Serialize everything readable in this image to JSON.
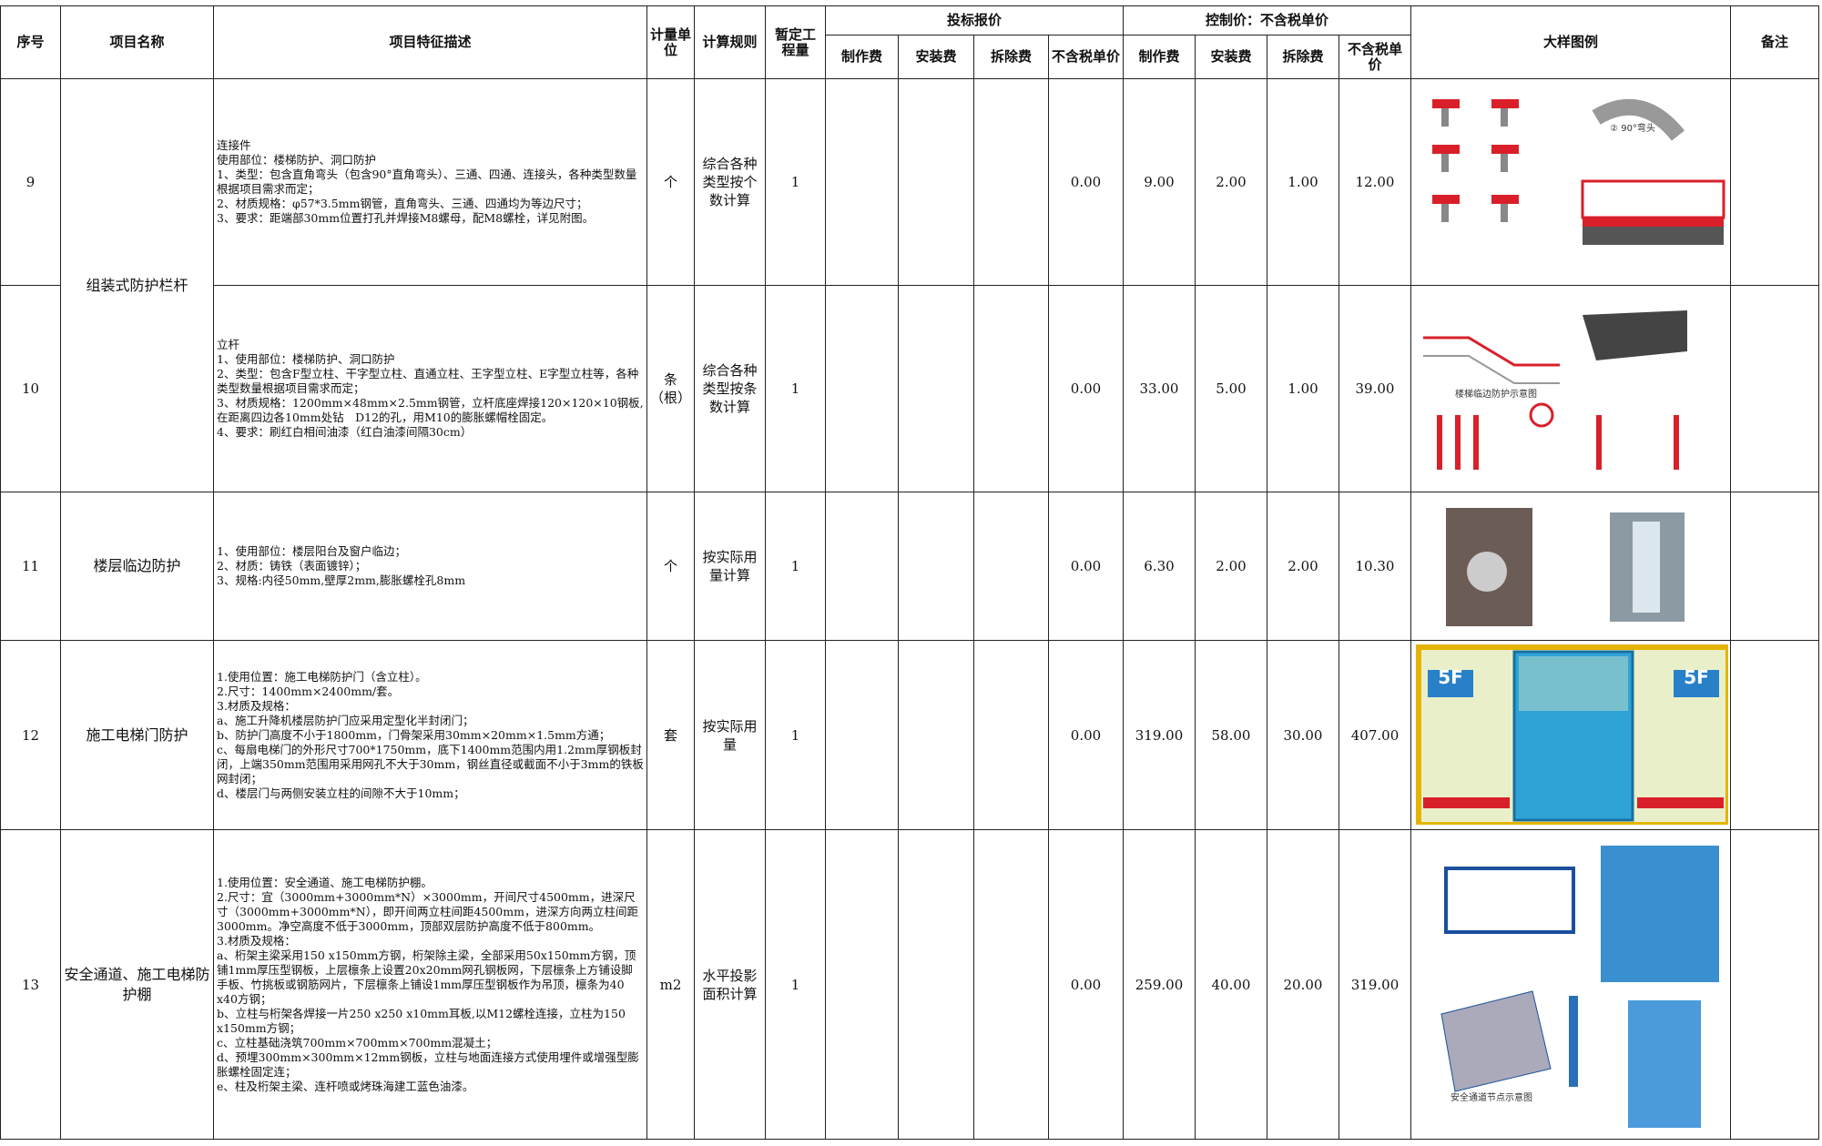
{
  "header": {
    "seq": "序号",
    "name": "项目名称",
    "desc": "项目特征描述",
    "unit": "计量单位",
    "rule": "计算规则",
    "qty": "暂定工程量",
    "bid_group": "投标报价",
    "bid_cols": [
      "制作费",
      "安装费",
      "拆除费",
      "不含税单价"
    ],
    "ctrl_group": "控制价：不含税单价",
    "ctrl_cols": [
      "制作费",
      "安装费",
      "拆除费",
      "不含税单价"
    ],
    "figure": "大样图例",
    "remark": "备注"
  },
  "rows": [
    {
      "seq": "9",
      "name": "组装式防护栏杆",
      "desc": [
        "连接件",
        "使用部位：楼梯防护、洞口防护",
        "1、类型：包含直角弯头（包含90°直角弯头）、三通、四通、连接头，各种类型数量根据项目需求而定；",
        "2、材质规格：φ57*3.5mm钢管，直角弯头、三通、四通均为等边尺寸；",
        "3、要求：距端部30mm位置打孔并焊接M8螺母，配M8螺栓，详见附图。"
      ],
      "unit": "个",
      "rule": "综合各种类型按个数计算",
      "qty": "1",
      "bid_price": "0.00",
      "ctrl": [
        "9.00",
        "2.00",
        "1.00",
        "12.00"
      ],
      "figure_texts": [
        "② 90°弯头"
      ]
    },
    {
      "seq": "10",
      "desc": [
        "立杆",
        "1、使用部位：楼梯防护、洞口防护",
        "2、类型：包含F型立柱、干字型立柱、直通立柱、王字型立柱、E字型立柱等，各种类型数量根据项目需求而定；",
        "3、材质规格：1200mm×48mm×2.5mm钢管，立杆底座焊接120×120×10钢板,在距离四边各10mm处钻　D12的孔，用M10的膨胀螺帽栓固定。",
        "4、要求：刷红白相间油漆（红白油漆间隔30cm）"
      ],
      "unit": "条（根）",
      "rule": "综合各种类型按条数计算",
      "qty": "1",
      "bid_price": "0.00",
      "ctrl": [
        "33.00",
        "5.00",
        "1.00",
        "39.00"
      ],
      "figure_texts": [
        "楼梯临边防护示意图"
      ]
    },
    {
      "seq": "11",
      "name": "楼层临边防护",
      "desc": [
        "1、使用部位：楼层阳台及窗户临边；",
        "2、材质：铸铁（表面镀锌）；",
        "3、规格:内径50mm,壁厚2mm,膨胀螺栓孔8mm"
      ],
      "unit": "个",
      "rule": "按实际用量计算",
      "qty": "1",
      "bid_price": "0.00",
      "ctrl": [
        "6.30",
        "2.00",
        "2.00",
        "10.30"
      ]
    },
    {
      "seq": "12",
      "name": "施工电梯门防护",
      "desc": [
        "1.使用位置：施工电梯防护门（含立柱）。",
        "2.尺寸：1400mm×2400mm/套。",
        "3.材质及规格：",
        "a、施工升降机楼层防护门应采用定型化半封闭门；",
        "b、防护门高度不小于1800mm，门骨架采用30mm×20mm×1.5mm方通；",
        "c、每扇电梯门的外形尺寸700*1750mm，底下1400mm范围内用1.2mm厚钢板封闭，上端350mm范围用采用网孔不大于30mm，钢丝直径或截面不小于3mm的铁板网封闭；",
        "d、楼层门与两侧安装立柱的间隙不大于10mm；"
      ],
      "unit": "套",
      "rule": "按实际用量",
      "qty": "1",
      "bid_price": "0.00",
      "ctrl": [
        "319.00",
        "58.00",
        "30.00",
        "407.00"
      ],
      "figure_texts": [
        "5F",
        "5F"
      ]
    },
    {
      "seq": "13",
      "name": "安全通道、施工电梯防护棚",
      "desc": [
        "1.使用位置：安全通道、施工电梯防护棚。",
        "2.尺寸：宜（3000mm+3000mm*N）×3000mm，开间尺寸4500mm，进深尺寸（3000mm+3000mm*N），即开间两立柱间距4500mm，进深方向两立柱间距3000mm。净空高度不低于3000mm，顶部双层防护高度不低于800mm。",
        "3.材质及规格：",
        "a、桁架主梁采用150 x150mm方钢，桁架除主梁，全部采用50x150mm方钢，顶铺1mm厚压型钢板，上层檩条上设置20x20mm网孔钢板网，下层檩条上方铺设脚手板、竹挑板或钢筋网片，下层檩条上铺设1mm厚压型钢板作为吊顶，檩条为40 x40方钢；",
        "b、立柱与桁架各焊接一片250 x250 x10mm耳板,以M12螺栓连接，立柱为150 x150mm方钢；",
        "c、立柱基础浇筑700mm×700mm×700mm混凝土；",
        "d、预埋300mm×300mm×12mm钢板，立柱与地面连接方式使用埋件或增强型膨胀螺栓固定连；",
        "e、柱及桁架主梁、连杆喷或烤珠海建工蓝色油漆。"
      ],
      "unit": "m2",
      "rule": "水平投影面积计算",
      "qty": "1",
      "bid_price": "0.00",
      "ctrl": [
        "259.00",
        "40.00",
        "20.00",
        "319.00"
      ],
      "figure_texts": [
        "安全通道节点示意图"
      ]
    }
  ]
}
